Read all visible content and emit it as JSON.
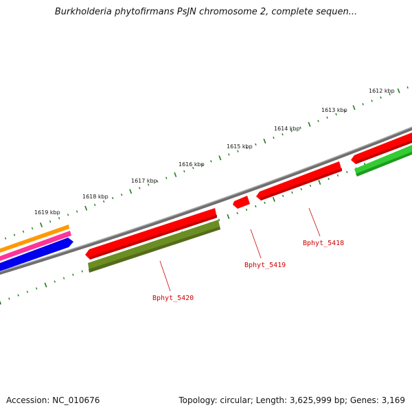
{
  "title": "Burkholderia phytofirmans PsJN chromosome 2, complete sequen...",
  "footer": {
    "accession": "Accession: NC_010676",
    "summary": "Topology: circular; Length: 3,625,999 bp; Genes: 3,169"
  },
  "scale_labels": [
    "1612 kbp",
    "1613 kbp",
    "1614 kbp",
    "1615 kbp",
    "1616 kbp",
    "1617 kbp",
    "1618 kbp",
    "1619 kbp"
  ],
  "gene_labels": [
    "Bphyt_5418",
    "Bphyt_5419",
    "Bphyt_5420"
  ],
  "colors": {
    "backbone": "#808080",
    "forward_gene": "#ff0000",
    "reverse_gene": "#33cc33",
    "olive_gene": "#6b8e23",
    "orange_feature": "#ff9900",
    "magenta_feature": "#ff3399",
    "blue_feature": "#0000ee",
    "tick": "#1a7a1a",
    "label": "#cc0000"
  }
}
